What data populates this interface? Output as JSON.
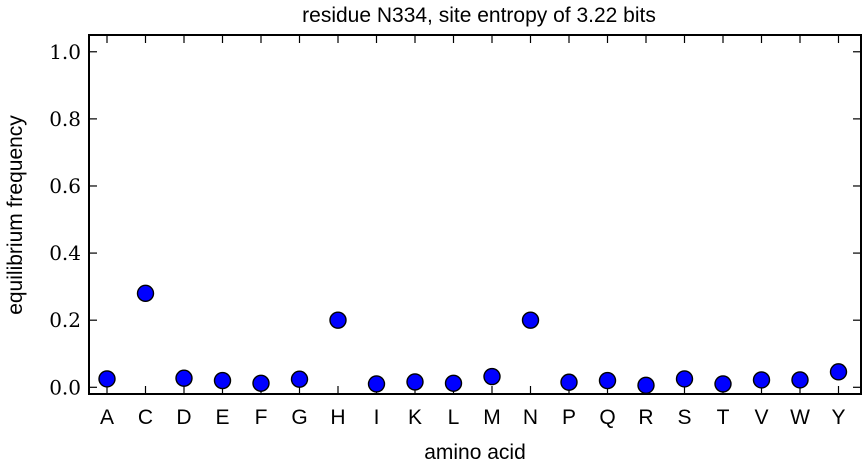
{
  "chart_data": {
    "type": "scatter",
    "title": "residue N334, site entropy of 3.22 bits",
    "xlabel": "amino acid",
    "ylabel": "equilibrium frequency",
    "categories": [
      "A",
      "C",
      "D",
      "E",
      "F",
      "G",
      "H",
      "I",
      "K",
      "L",
      "M",
      "N",
      "P",
      "Q",
      "R",
      "S",
      "T",
      "V",
      "W",
      "Y"
    ],
    "values": [
      0.025,
      0.28,
      0.027,
      0.02,
      0.012,
      0.024,
      0.2,
      0.01,
      0.016,
      0.012,
      0.032,
      0.2,
      0.015,
      0.02,
      0.006,
      0.025,
      0.01,
      0.022,
      0.022,
      0.046
    ],
    "ylim": [
      -0.02,
      1.05
    ],
    "yticks": [
      "0.0",
      "0.2",
      "0.4",
      "0.6",
      "0.8",
      "1.0"
    ],
    "marker_color": "#0000ff",
    "marker_edge_color": "#000000",
    "grid": false
  }
}
